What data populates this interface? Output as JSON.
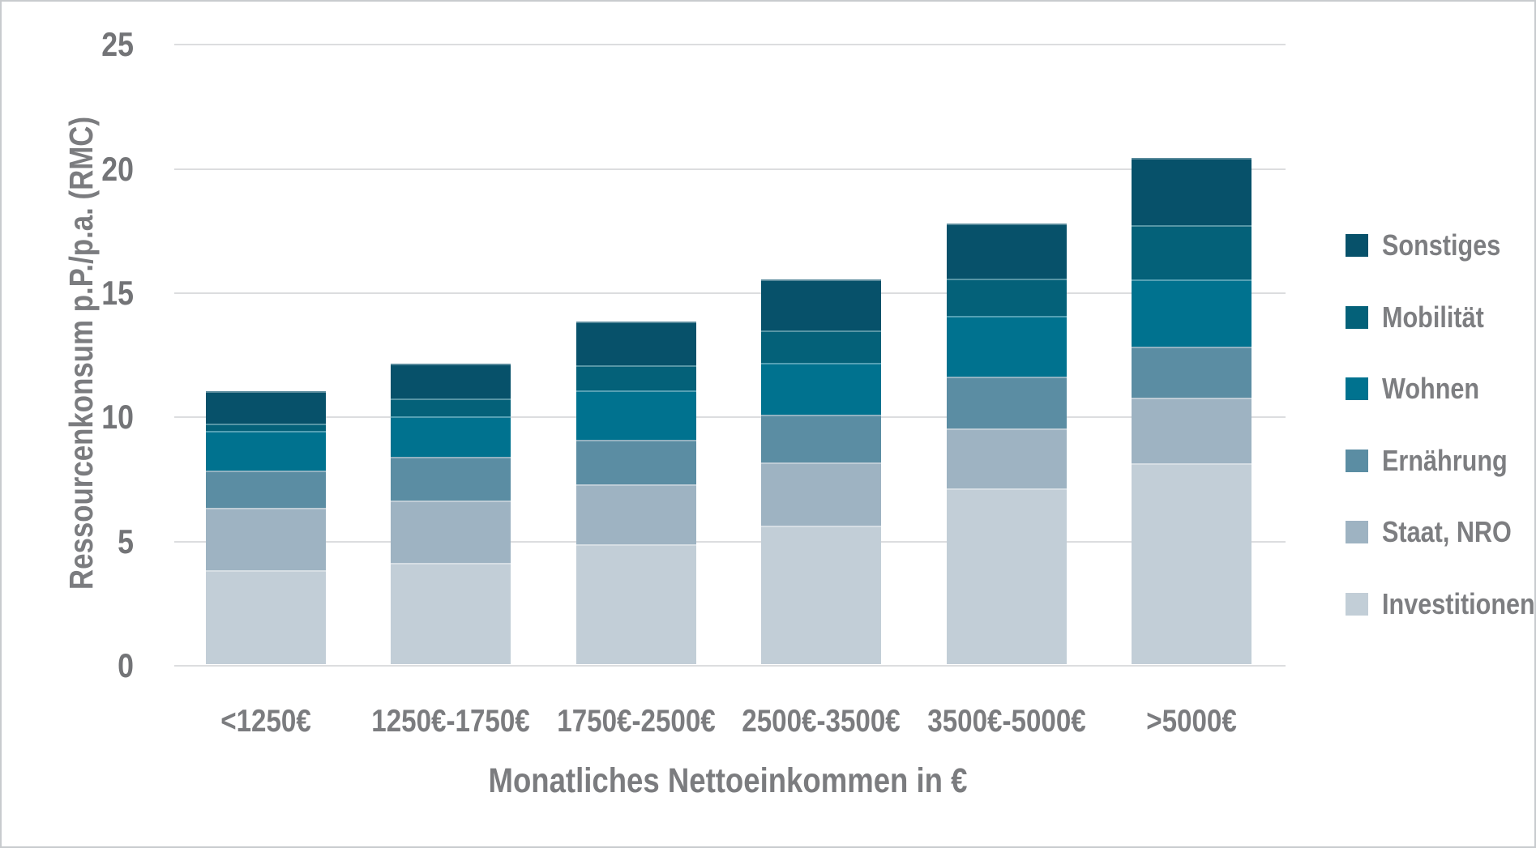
{
  "chart_data": {
    "type": "bar",
    "stacked": true,
    "categories": [
      "<1250€",
      "1250€-1750€",
      "1750€-2500€",
      "2500€-3500€",
      "3500€-5000€",
      ">5000€"
    ],
    "series": [
      {
        "key": "investitionen",
        "name": "Investitionen",
        "color": "#c2ced7",
        "values": [
          3.8,
          4.1,
          4.85,
          5.6,
          7.1,
          8.1
        ]
      },
      {
        "key": "staat-nro",
        "name": "Staat, NRO",
        "color": "#9eb3c2",
        "values": [
          2.5,
          2.5,
          2.4,
          2.55,
          2.4,
          2.65
        ]
      },
      {
        "key": "ernaehrung",
        "name": "Ernährung",
        "color": "#5b8da3",
        "values": [
          1.5,
          1.75,
          1.8,
          1.9,
          2.1,
          2.05
        ]
      },
      {
        "key": "wohnen",
        "name": "Wohnen",
        "color": "#00728f",
        "values": [
          1.6,
          1.65,
          2.0,
          2.1,
          2.45,
          2.7
        ]
      },
      {
        "key": "mobilitaet",
        "name": "Mobilität",
        "color": "#046179",
        "values": [
          0.3,
          0.7,
          1.0,
          1.3,
          1.5,
          2.2
        ]
      },
      {
        "key": "sonstiges",
        "name": "Sonstiges",
        "color": "#07516a",
        "values": [
          1.3,
          1.4,
          1.75,
          2.05,
          2.2,
          2.7
        ]
      }
    ],
    "totals": [
      11.0,
      12.1,
      13.8,
      15.5,
      17.75,
      20.4
    ],
    "ylabel": "Ressourcenkonsum p.P./p.a. (RMC)",
    "xlabel": "Monatliches Nettoeinkommen in €",
    "ylim": [
      0,
      25
    ],
    "y_ticks": [
      0,
      5,
      10,
      15,
      20,
      25
    ],
    "grid": true,
    "legend_position": "right",
    "legend_order": [
      "Sonstiges",
      "Mobilität",
      "Wohnen",
      "Ernährung",
      "Staat, NRO",
      "Investitionen"
    ],
    "gridline_color": "#dcdddf",
    "text_color": "#7b7c7f"
  }
}
